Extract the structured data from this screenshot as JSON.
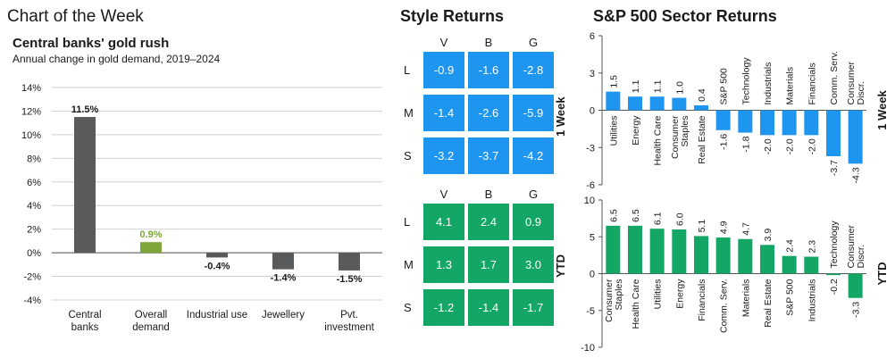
{
  "header": {
    "title": "Chart of the Week"
  },
  "gold_chart_title": "Central banks' gold rush",
  "gold_chart_subtitle": "Annual change in gold demand, 2019–2024",
  "style_returns": {
    "title": "Style Returns",
    "columns": [
      "V",
      "B",
      "G"
    ],
    "rows": [
      "L",
      "M",
      "S"
    ],
    "week_label": "1 Week",
    "ytd_label": "YTD",
    "week": [
      [
        "-0.9",
        "-1.6",
        "-2.8"
      ],
      [
        "-1.4",
        "-2.6",
        "-5.9"
      ],
      [
        "-3.2",
        "-3.7",
        "-4.2"
      ]
    ],
    "ytd": [
      [
        "4.1",
        "2.4",
        "0.9"
      ],
      [
        "1.3",
        "1.7",
        "3.0"
      ],
      [
        "-1.2",
        "-1.4",
        "-1.7"
      ]
    ],
    "colors": {
      "week": "#1e96f0",
      "ytd": "#13a665"
    }
  },
  "sector_returns": {
    "title": "S&P 500 Sector Returns",
    "week_label": "1 Week",
    "ytd_label": "YTD"
  },
  "chart_data": [
    {
      "id": "gold",
      "type": "bar",
      "title": "Central banks' gold rush",
      "subtitle": "Annual change in gold demand, 2019–2024",
      "categories": [
        [
          "Central",
          "banks"
        ],
        [
          "Overall",
          "demand"
        ],
        [
          "Industrial use"
        ],
        [
          "Jewellery"
        ],
        [
          "Pvt.",
          "investment"
        ]
      ],
      "values": [
        11.5,
        0.9,
        -0.4,
        -1.4,
        -1.5
      ],
      "labels": [
        "11.5%",
        "0.9%",
        "-0.4%",
        "-1.4%",
        "-1.5%"
      ],
      "ylim": [
        -4,
        14
      ],
      "yticks": [
        "-4%",
        "-2%",
        "0%",
        "2%",
        "4%",
        "6%",
        "8%",
        "10%",
        "12%",
        "14%"
      ],
      "colors": [
        "#595a5c",
        "#7fa63a",
        "#595a5c",
        "#595a5c",
        "#595a5c"
      ]
    },
    {
      "id": "sector_week",
      "type": "bar",
      "title": "1 Week",
      "categories": [
        "Utilities",
        "Energy",
        "Health Care",
        [
          "Consumer",
          "Staples"
        ],
        "Real Estate",
        "S&P 500",
        "Technology",
        "Industrials",
        "Materials",
        "Financials",
        [
          "Comm. Serv."
        ],
        [
          "Consumer",
          "Discr."
        ]
      ],
      "values": [
        1.5,
        1.1,
        1.1,
        1.0,
        0.4,
        -1.6,
        -1.8,
        -2.0,
        -2.0,
        -2.0,
        -3.7,
        -4.3
      ],
      "labels": [
        "1.5",
        "1.1",
        "1.1",
        "1.0",
        "0.4",
        "-1.6",
        "-1.8",
        "-2.0",
        "-2.0",
        "-2.0",
        "-3.7",
        "-4.3"
      ],
      "ylim": [
        -6,
        6
      ],
      "yticks": [
        "-6",
        "-3",
        "0",
        "3",
        "6"
      ],
      "color": "#1e96f0"
    },
    {
      "id": "sector_ytd",
      "type": "bar",
      "title": "YTD",
      "categories": [
        [
          "Consumer",
          "Staples"
        ],
        "Health Care",
        "Utilities",
        "Energy",
        "Financials",
        "Comm. Serv.",
        "Materials",
        "Real Estate",
        "S&P 500",
        "Industrials",
        "Technology",
        [
          "Consumer",
          "Discr."
        ]
      ],
      "values": [
        6.5,
        6.5,
        6.1,
        6.0,
        5.1,
        4.9,
        4.7,
        3.9,
        2.4,
        2.3,
        -0.2,
        -3.3
      ],
      "labels": [
        "6.5",
        "6.5",
        "6.1",
        "6.0",
        "5.1",
        "4.9",
        "4.7",
        "3.9",
        "2.4",
        "2.3",
        "-0.2",
        "-3.3"
      ],
      "ylim": [
        -10,
        10
      ],
      "yticks": [
        "-10",
        "-5",
        "0",
        "5",
        "10"
      ],
      "color": "#13a665"
    }
  ]
}
